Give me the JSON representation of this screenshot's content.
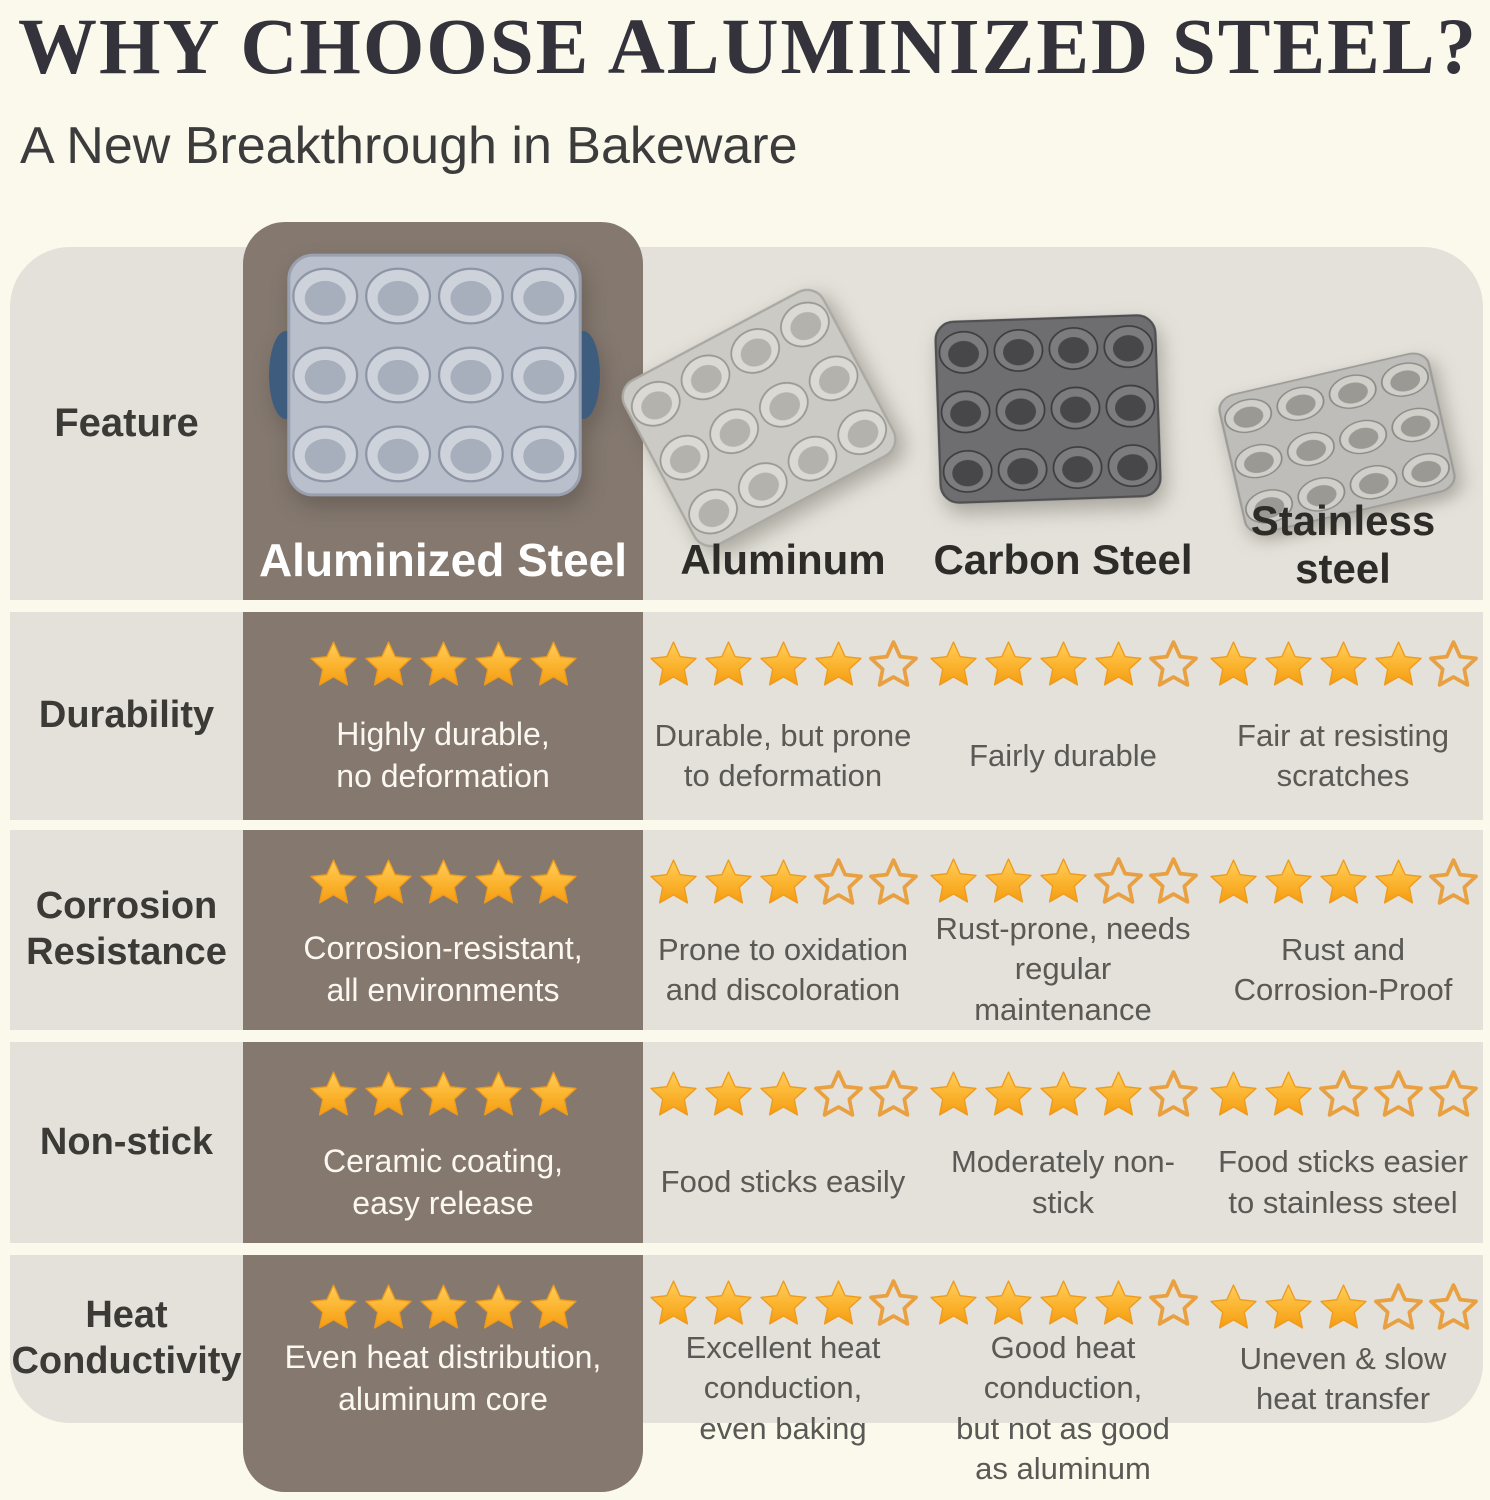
{
  "page": {
    "title": "WHY CHOOSE ALUMINIZED STEEL?",
    "subtitle": "A New Breakthrough in Bakeware"
  },
  "colors": {
    "background": "#FAF9EC",
    "row_background": "#E3E1D9",
    "highlight_column_background": "#84786F",
    "star_filled_top": "#FFCE5A",
    "star_filled_bottom": "#F49D12",
    "star_empty_stroke": "#E9A041",
    "title_text": "#34333C",
    "label_text": "#3B3A36",
    "note_text": "#5A5955",
    "highlight_text": "#FFFFFF",
    "aluminized_pan_handle": "#3D5C7E"
  },
  "icons": {
    "aluminized_steel_pan": "muffin-pan-12-cup-gray-blue-handles",
    "aluminum_pan": "muffin-pan-12-cup-light-gray-tilted",
    "carbon_steel_pan": "muffin-pan-12-cup-dark-gray",
    "stainless_steel_pan": "muffin-pan-12-cup-gray-tilted"
  },
  "table": {
    "feature_header": "Feature",
    "columns": [
      {
        "label": "Aluminized Steel",
        "highlight": true
      },
      {
        "label": "Aluminum",
        "highlight": false
      },
      {
        "label": "Carbon Steel",
        "highlight": false
      },
      {
        "label": "Stainless\nsteel",
        "highlight": false
      }
    ],
    "rows": [
      {
        "label": "Durability",
        "cells": [
          {
            "stars": 5,
            "text": "Highly durable,\nno deformation"
          },
          {
            "stars": 4,
            "text": "Durable, but prone\nto deformation"
          },
          {
            "stars": 4,
            "text": "Fairly durable"
          },
          {
            "stars": 4,
            "text": "Fair at resisting\nscratches"
          }
        ]
      },
      {
        "label": "Corrosion\nResistance",
        "cells": [
          {
            "stars": 5,
            "text": "Corrosion-resistant,\nall environments"
          },
          {
            "stars": 3,
            "text": "Prone to oxidation\nand discoloration"
          },
          {
            "stars": 3,
            "text": "Rust-prone, needs\nregular maintenance"
          },
          {
            "stars": 4,
            "text": "Rust and\nCorrosion-Proof"
          }
        ]
      },
      {
        "label": "Non-stick",
        "cells": [
          {
            "stars": 5,
            "text": "Ceramic coating,\neasy release"
          },
          {
            "stars": 3,
            "text": "Food sticks easily"
          },
          {
            "stars": 4,
            "text": "Moderately non-stick"
          },
          {
            "stars": 2,
            "text": "Food sticks easier\nto stainless steel"
          }
        ]
      },
      {
        "label": "Heat\nConductivity",
        "cells": [
          {
            "stars": 5,
            "text": "Even heat distribution,\naluminum core"
          },
          {
            "stars": 4,
            "text": "Excellent heat\nconduction,\neven baking"
          },
          {
            "stars": 4,
            "text": "Good heat conduction,\nbut not as good\nas aluminum"
          },
          {
            "stars": 3,
            "text": "Uneven & slow\nheat transfer"
          }
        ]
      }
    ],
    "rating_scale": 5
  },
  "chart_data": {
    "type": "table",
    "title": "WHY CHOOSE ALUMINIZED STEEL?",
    "subtitle": "A New Breakthrough in Bakeware",
    "row_header": "Feature",
    "columns": [
      "Aluminized Steel",
      "Aluminum",
      "Carbon Steel",
      "Stainless steel"
    ],
    "rating_scale": 5,
    "rows": [
      {
        "feature": "Durability",
        "ratings": [
          5,
          4,
          4,
          4
        ],
        "notes": [
          "Highly durable, no deformation",
          "Durable, but prone to deformation",
          "Fairly durable",
          "Fair at resisting scratches"
        ]
      },
      {
        "feature": "Corrosion Resistance",
        "ratings": [
          5,
          3,
          3,
          4
        ],
        "notes": [
          "Corrosion-resistant, all environments",
          "Prone to oxidation and discoloration",
          "Rust-prone, needs regular maintenance",
          "Rust and Corrosion-Proof"
        ]
      },
      {
        "feature": "Non-stick",
        "ratings": [
          5,
          3,
          4,
          2
        ],
        "notes": [
          "Ceramic coating, easy release",
          "Food sticks easily",
          "Moderately non-stick",
          "Food sticks easier to stainless steel"
        ]
      },
      {
        "feature": "Heat Conductivity",
        "ratings": [
          5,
          4,
          4,
          3
        ],
        "notes": [
          "Even heat distribution, aluminum core",
          "Excellent heat conduction, even baking",
          "Good heat conduction, but not as good as aluminum",
          "Uneven & slow heat transfer"
        ]
      }
    ]
  }
}
